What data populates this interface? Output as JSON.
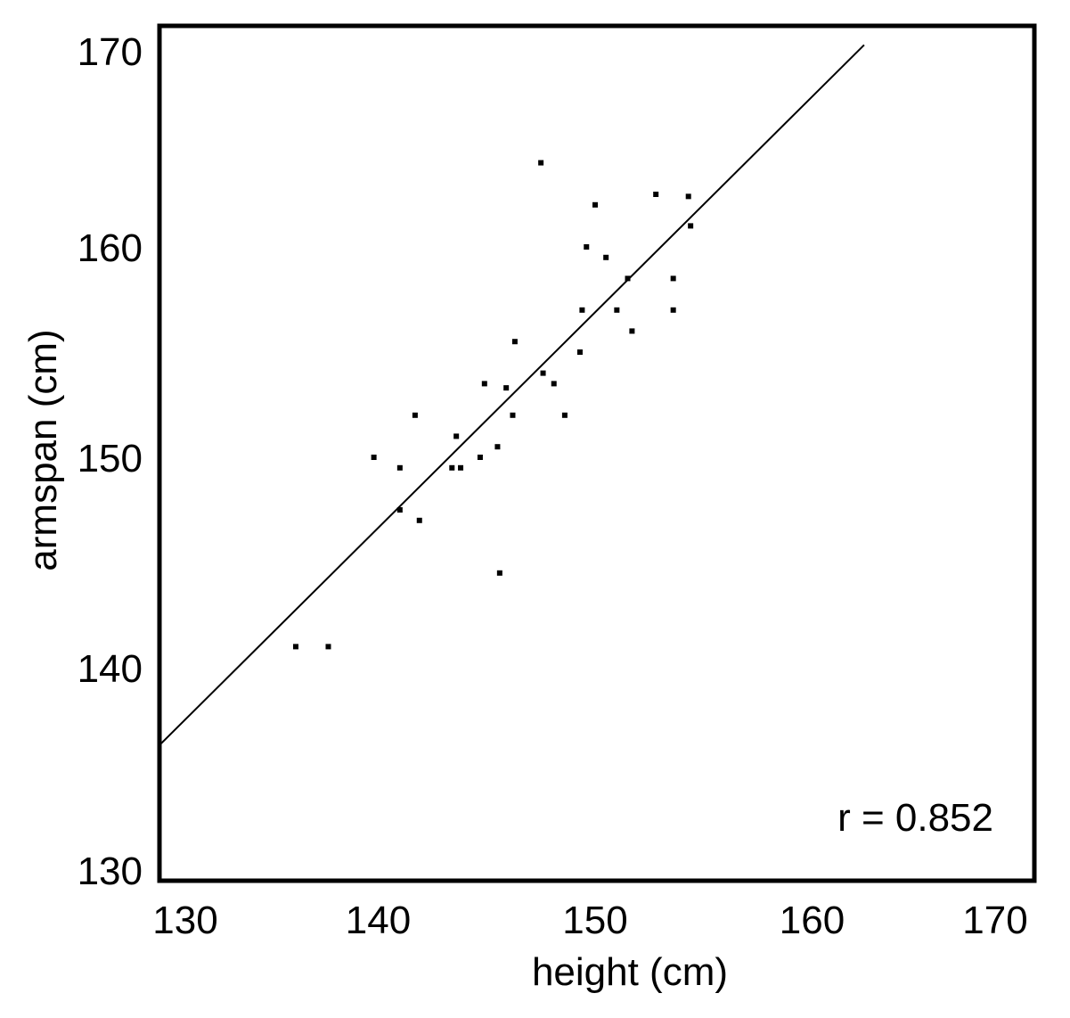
{
  "chart_data": {
    "type": "scatter",
    "title": "",
    "xlabel": "height (cm)",
    "ylabel": "armspan (cm)",
    "xlim": [
      130,
      170
    ],
    "ylim": [
      130,
      170
    ],
    "x_ticks": [
      "130",
      "140",
      "150",
      "160",
      "170"
    ],
    "y_ticks": [
      "130",
      "140",
      "150",
      "160",
      "170"
    ],
    "grid": false,
    "annotation": "r = 0.852",
    "trendline": {
      "x": [
        130,
        162.4
      ],
      "y": [
        136.4,
        169.6
      ]
    },
    "series": [
      {
        "points": [
          {
            "x": 136.2,
            "y": 141.0
          },
          {
            "x": 137.7,
            "y": 141.0
          },
          {
            "x": 139.8,
            "y": 150.0
          },
          {
            "x": 141.0,
            "y": 149.5
          },
          {
            "x": 141.0,
            "y": 147.5
          },
          {
            "x": 141.7,
            "y": 152.0
          },
          {
            "x": 141.9,
            "y": 147.0
          },
          {
            "x": 143.4,
            "y": 149.5
          },
          {
            "x": 143.6,
            "y": 151.0
          },
          {
            "x": 143.8,
            "y": 149.5
          },
          {
            "x": 144.7,
            "y": 150.0
          },
          {
            "x": 144.9,
            "y": 153.5
          },
          {
            "x": 145.5,
            "y": 150.5
          },
          {
            "x": 145.6,
            "y": 144.5
          },
          {
            "x": 145.9,
            "y": 153.3
          },
          {
            "x": 146.2,
            "y": 152.0
          },
          {
            "x": 146.3,
            "y": 155.5
          },
          {
            "x": 147.5,
            "y": 164.0
          },
          {
            "x": 147.6,
            "y": 154.0
          },
          {
            "x": 148.1,
            "y": 153.5
          },
          {
            "x": 148.6,
            "y": 152.0
          },
          {
            "x": 149.3,
            "y": 155.0
          },
          {
            "x": 149.4,
            "y": 157.0
          },
          {
            "x": 149.6,
            "y": 160.0
          },
          {
            "x": 150.0,
            "y": 162.0
          },
          {
            "x": 150.5,
            "y": 159.5
          },
          {
            "x": 151.0,
            "y": 157.0
          },
          {
            "x": 151.5,
            "y": 158.5
          },
          {
            "x": 151.7,
            "y": 156.0
          },
          {
            "x": 152.8,
            "y": 162.5
          },
          {
            "x": 153.6,
            "y": 158.5
          },
          {
            "x": 153.6,
            "y": 157.0
          },
          {
            "x": 154.3,
            "y": 162.4
          },
          {
            "x": 154.4,
            "y": 161.0
          }
        ]
      }
    ]
  }
}
